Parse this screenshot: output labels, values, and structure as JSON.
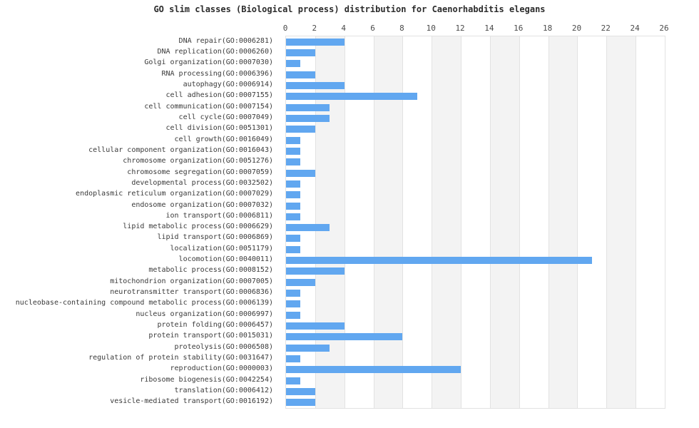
{
  "chart_data": {
    "type": "bar",
    "orientation": "horizontal",
    "title": "GO slim classes (Biological process) distribution for Caenorhabditis elegans",
    "xlabel": "",
    "ylabel": "",
    "axis_position": "top",
    "xlim": [
      0,
      26
    ],
    "x_ticks": [
      0,
      2,
      4,
      6,
      8,
      10,
      12,
      14,
      16,
      18,
      20,
      22,
      24,
      26
    ],
    "grid": true,
    "legend": "none",
    "bar_color": "#61a7f0",
    "band_color_even": "#ffffff",
    "band_color_odd": "#f3f3f3",
    "gridline_color": "#e2e2e2",
    "categories": [
      "DNA repair(GO:0006281)",
      "DNA replication(GO:0006260)",
      "Golgi organization(GO:0007030)",
      "RNA processing(GO:0006396)",
      "autophagy(GO:0006914)",
      "cell adhesion(GO:0007155)",
      "cell communication(GO:0007154)",
      "cell cycle(GO:0007049)",
      "cell division(GO:0051301)",
      "cell growth(GO:0016049)",
      "cellular component organization(GO:0016043)",
      "chromosome organization(GO:0051276)",
      "chromosome segregation(GO:0007059)",
      "developmental process(GO:0032502)",
      "endoplasmic reticulum organization(GO:0007029)",
      "endosome organization(GO:0007032)",
      "ion transport(GO:0006811)",
      "lipid metabolic process(GO:0006629)",
      "lipid transport(GO:0006869)",
      "localization(GO:0051179)",
      "locomotion(GO:0040011)",
      "metabolic process(GO:0008152)",
      "mitochondrion organization(GO:0007005)",
      "neurotransmitter transport(GO:0006836)",
      "nucleobase-containing compound metabolic process(GO:0006139)",
      "nucleus organization(GO:0006997)",
      "protein folding(GO:0006457)",
      "protein transport(GO:0015031)",
      "proteolysis(GO:0006508)",
      "regulation of protein stability(GO:0031647)",
      "reproduction(GO:0000003)",
      "ribosome biogenesis(GO:0042254)",
      "translation(GO:0006412)",
      "vesicle-mediated transport(GO:0016192)"
    ],
    "values": [
      4,
      2,
      1,
      2,
      4,
      9,
      3,
      3,
      2,
      1,
      1,
      1,
      2,
      1,
      1,
      1,
      1,
      3,
      1,
      1,
      21,
      4,
      2,
      1,
      1,
      1,
      4,
      8,
      3,
      1,
      12,
      1,
      2,
      2
    ]
  }
}
